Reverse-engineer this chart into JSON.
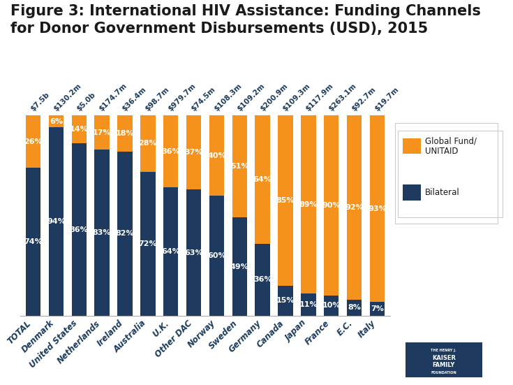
{
  "categories": [
    "TOTAL",
    "Denmark",
    "United States",
    "Netherlands",
    "Ireland",
    "Australia",
    "U.K.",
    "Other DAC",
    "Norway",
    "Sweden",
    "Germany",
    "Canada",
    "Japan",
    "France",
    "E.C.",
    "Italy"
  ],
  "total_labels": [
    "$7.5b",
    "$130.2m",
    "$5.0b",
    "$174.7m",
    "$36.4m",
    "$98.7m",
    "$979.7m",
    "$74.5m",
    "$108.3m",
    "$109.2m",
    "$200.9m",
    "$109.3m",
    "$117.9m",
    "$263.1m",
    "$92.7m",
    "$19.7m"
  ],
  "bilateral_pct": [
    74,
    94,
    86,
    83,
    82,
    72,
    64,
    63,
    60,
    49,
    36,
    15,
    11,
    10,
    8,
    7
  ],
  "global_fund_pct": [
    26,
    6,
    14,
    17,
    18,
    28,
    36,
    37,
    40,
    51,
    64,
    85,
    89,
    90,
    92,
    93
  ],
  "bilateral_color": "#1e3a5f",
  "global_fund_color": "#f5921e",
  "title_line1": "Figure 3: International HIV Assistance: Funding Channels",
  "title_line2": "for Donor Government Disbursements (USD), 2015",
  "legend_global": "Global Fund/\nUNITAID",
  "legend_bilateral": "Bilateral",
  "background_color": "#ffffff",
  "bar_width": 0.65,
  "title_fontsize": 15,
  "label_fontsize": 8.0,
  "tick_fontsize": 8.5,
  "total_label_fontsize": 7.5
}
